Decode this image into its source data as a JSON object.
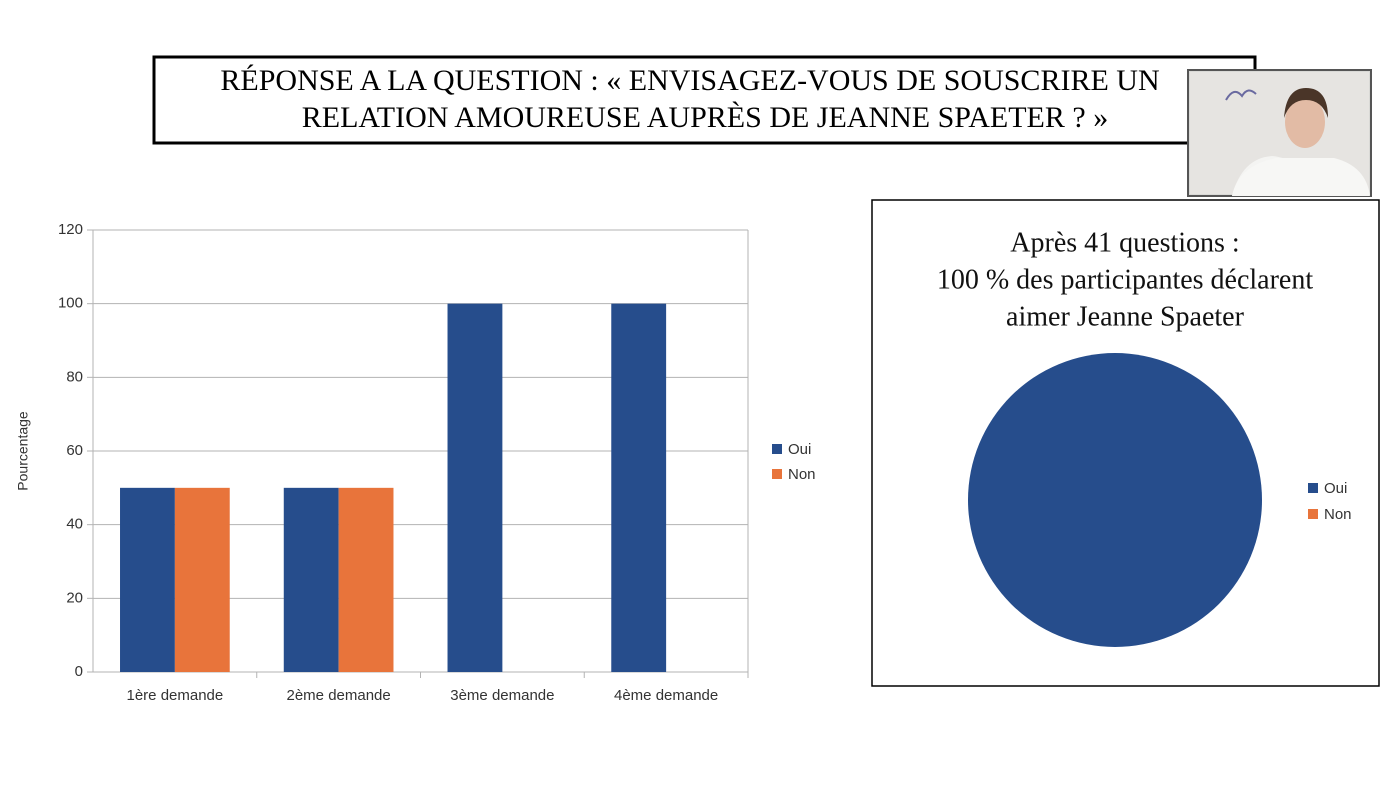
{
  "title": [
    "RÉPONSE A LA QUESTION : « ENVISAGEZ-VOUS DE SOUSCRIRE UN",
    "RELATION AMOUREUSE AUPRÈS DE JEANNE SPAETER ? »"
  ],
  "chart_data": [
    {
      "type": "bar",
      "y_label": "Pourcentage",
      "categories": [
        "1ère demande",
        "2ème demande",
        "3ème demande",
        "4ème demande"
      ],
      "series": [
        {
          "name": "Oui",
          "color": "#264d8c",
          "values": [
            50,
            50,
            100,
            100
          ]
        },
        {
          "name": "Non",
          "color": "#e8743b",
          "values": [
            50,
            50,
            0,
            0
          ]
        }
      ],
      "ylim": [
        0,
        120
      ],
      "yticks": [
        0,
        20,
        40,
        60,
        80,
        100,
        120
      ],
      "grid": true,
      "legend": "right"
    },
    {
      "type": "pie",
      "title": [
        "Après 41 questions :",
        "100 % des participantes déclarent",
        "aimer Jeanne Spaeter"
      ],
      "categories": [
        "Oui",
        "Non"
      ],
      "values": [
        100,
        0
      ],
      "colors": [
        "#264d8c",
        "#e8743b"
      ],
      "legend": "right"
    }
  ]
}
